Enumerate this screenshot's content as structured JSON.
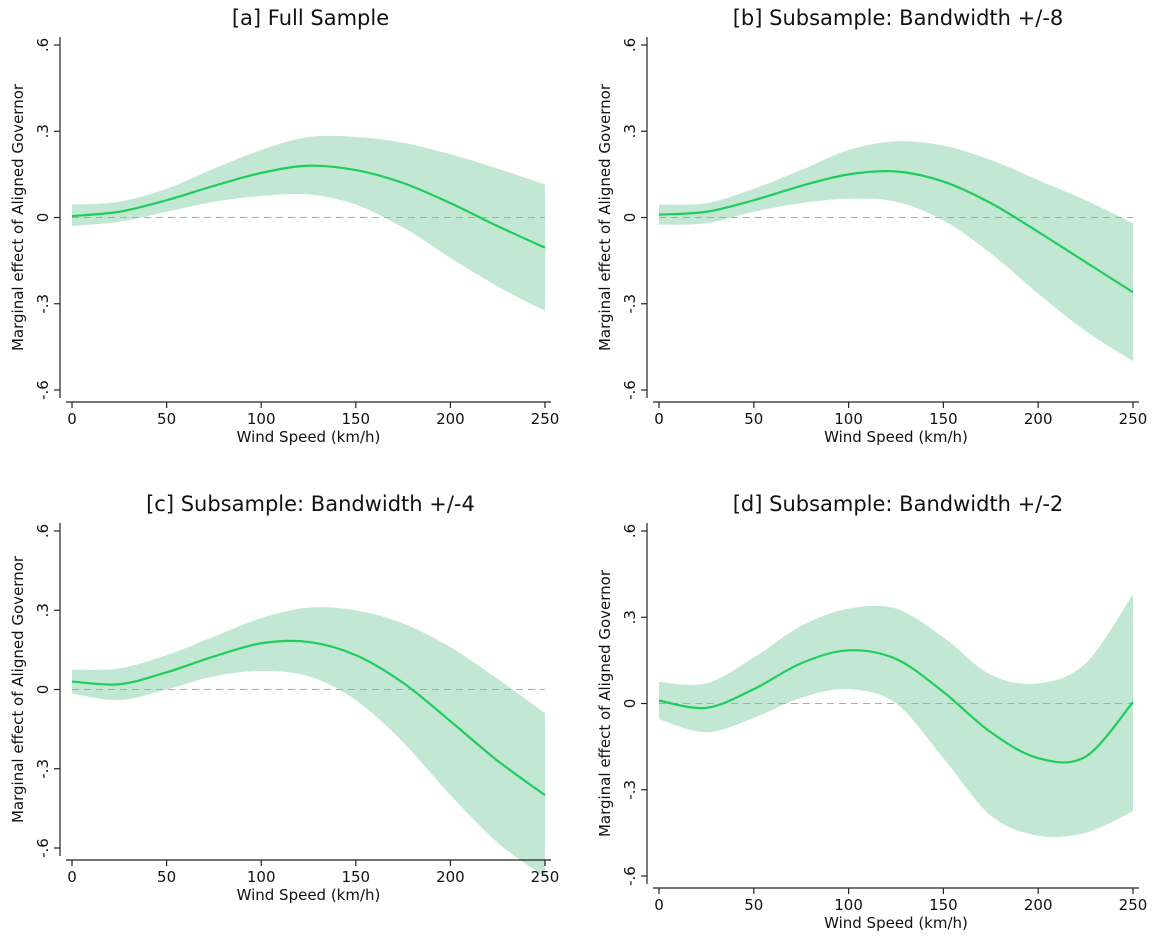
{
  "colors": {
    "line": "#1fcc5c",
    "band": "#c2e8d3"
  },
  "chart_data": [
    {
      "type": "line",
      "title": "[a] Full Sample",
      "xlabel": "Wind Speed (km/h)",
      "ylabel": "Marginal effect of Aligned Governor",
      "xlim": [
        0,
        250
      ],
      "ylim": [
        -0.6,
        0.6
      ],
      "x_ticks": [
        0,
        50,
        100,
        150,
        200,
        250
      ],
      "x_tick_labels": [
        "0",
        "50",
        "100",
        "150",
        "200",
        "250"
      ],
      "y_ticks": [
        0.6,
        0.3,
        0,
        -0.3,
        -0.6
      ],
      "y_tick_labels": [
        ".6",
        ".3",
        "0",
        "-.3",
        "-.6"
      ],
      "reference_line": 0,
      "grid": false,
      "x": [
        0,
        25,
        50,
        75,
        100,
        125,
        150,
        175,
        200,
        225,
        250
      ],
      "series": [
        {
          "values": [
            0.005,
            0.02,
            0.06,
            0.11,
            0.155,
            0.18,
            0.165,
            0.12,
            0.05,
            -0.03,
            -0.105
          ]
        }
      ],
      "ci_lower": [
        -0.03,
        -0.015,
        0.02,
        0.055,
        0.075,
        0.08,
        0.045,
        -0.035,
        -0.14,
        -0.24,
        -0.325
      ],
      "ci_upper": [
        0.045,
        0.055,
        0.1,
        0.17,
        0.235,
        0.28,
        0.28,
        0.26,
        0.22,
        0.17,
        0.115
      ]
    },
    {
      "type": "line",
      "title": "[b] Subsample: Bandwidth +/-8",
      "xlabel": "Wind Speed (km/h)",
      "ylabel": "Marginal effect of Aligned Governor",
      "xlim": [
        0,
        250
      ],
      "ylim": [
        -0.6,
        0.6
      ],
      "x_ticks": [
        0,
        50,
        100,
        150,
        200,
        250
      ],
      "x_tick_labels": [
        "0",
        "50",
        "100",
        "150",
        "200",
        "250"
      ],
      "y_ticks": [
        0.6,
        0.3,
        0,
        -0.3,
        -0.6
      ],
      "y_tick_labels": [
        ".6",
        ".3",
        "0",
        "-.3",
        "-.6"
      ],
      "reference_line": 0,
      "grid": false,
      "x": [
        0,
        25,
        50,
        75,
        100,
        125,
        150,
        175,
        200,
        225,
        250
      ],
      "series": [
        {
          "values": [
            0.01,
            0.02,
            0.06,
            0.11,
            0.15,
            0.16,
            0.125,
            0.05,
            -0.05,
            -0.155,
            -0.26
          ]
        }
      ],
      "ci_lower": [
        -0.025,
        -0.02,
        0.02,
        0.05,
        0.065,
        0.055,
        -0.01,
        -0.125,
        -0.265,
        -0.395,
        -0.5
      ],
      "ci_upper": [
        0.045,
        0.05,
        0.1,
        0.165,
        0.235,
        0.265,
        0.25,
        0.2,
        0.13,
        0.06,
        -0.02
      ]
    },
    {
      "type": "line",
      "title": "[c] Subsample: Bandwidth +/-4",
      "xlabel": "Wind Speed (km/h)",
      "ylabel": "Marginal effect of Aligned Governor",
      "xlim": [
        0,
        250
      ],
      "ylim": [
        -0.6,
        0.6
      ],
      "x_ticks": [
        0,
        50,
        100,
        150,
        200,
        250
      ],
      "x_tick_labels": [
        "0",
        "50",
        "100",
        "150",
        "200",
        "250"
      ],
      "y_ticks": [
        0.6,
        0.3,
        0,
        -0.3,
        -0.6
      ],
      "y_tick_labels": [
        ".6",
        ".3",
        "0",
        "-.3",
        "-.6"
      ],
      "reference_line": 0,
      "grid": false,
      "x": [
        0,
        25,
        50,
        75,
        100,
        125,
        150,
        175,
        200,
        225,
        250
      ],
      "series": [
        {
          "values": [
            0.03,
            0.02,
            0.065,
            0.125,
            0.175,
            0.18,
            0.13,
            0.025,
            -0.12,
            -0.27,
            -0.4
          ]
        }
      ],
      "ci_lower": [
        -0.015,
        -0.04,
        0.0,
        0.05,
        0.07,
        0.05,
        -0.04,
        -0.2,
        -0.4,
        -0.58,
        -0.71
      ],
      "ci_upper": [
        0.075,
        0.08,
        0.13,
        0.2,
        0.27,
        0.31,
        0.3,
        0.25,
        0.16,
        0.04,
        -0.09
      ]
    },
    {
      "type": "line",
      "title": "[d] Subsample: Bandwidth +/-2",
      "xlabel": "Wind Speed (km/h)",
      "ylabel": "Marginal effect of Aligned Governor",
      "xlim": [
        0,
        250
      ],
      "ylim": [
        -0.6,
        0.6
      ],
      "x_ticks": [
        0,
        50,
        100,
        150,
        200,
        250
      ],
      "x_tick_labels": [
        "0",
        "50",
        "100",
        "150",
        "200",
        "250"
      ],
      "y_ticks": [
        0.6,
        0.3,
        0,
        -0.3,
        -0.6
      ],
      "y_tick_labels": [
        ".6",
        ".3",
        "0",
        "-.3",
        "-.6"
      ],
      "reference_line": 0,
      "grid": false,
      "x": [
        0,
        25,
        50,
        75,
        100,
        125,
        150,
        175,
        200,
        225,
        250
      ],
      "series": [
        {
          "values": [
            0.01,
            -0.015,
            0.05,
            0.14,
            0.185,
            0.155,
            0.04,
            -0.1,
            -0.19,
            -0.185,
            0.005
          ]
        }
      ],
      "ci_lower": [
        -0.055,
        -0.1,
        -0.05,
        0.02,
        0.05,
        0.0,
        -0.19,
        -0.39,
        -0.46,
        -0.45,
        -0.375
      ],
      "ci_upper": [
        0.075,
        0.07,
        0.16,
        0.27,
        0.33,
        0.33,
        0.23,
        0.1,
        0.07,
        0.14,
        0.38
      ]
    }
  ]
}
